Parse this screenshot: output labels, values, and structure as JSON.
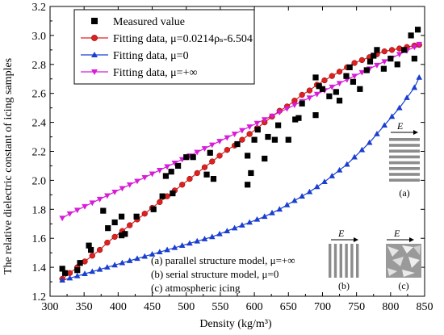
{
  "chart_data": {
    "type": "scatter",
    "xlabel": "Density (kg/m³)",
    "ylabel": "The relative dielectric constant of icing samples",
    "xlim": [
      300,
      850
    ],
    "ylim": [
      1.2,
      3.2
    ],
    "xticks": [
      300,
      350,
      400,
      450,
      500,
      550,
      600,
      650,
      700,
      750,
      800,
      850
    ],
    "yticks": [
      1.2,
      1.4,
      1.6,
      1.8,
      2.0,
      2.2,
      2.4,
      2.6,
      2.8,
      3.0,
      3.2
    ],
    "legend_position": "top-left",
    "series": [
      {
        "name": "Measured value",
        "kind": "scatter",
        "marker": "square",
        "color": "#000000",
        "points": [
          [
            318,
            1.39
          ],
          [
            322,
            1.36
          ],
          [
            340,
            1.38
          ],
          [
            344,
            1.43
          ],
          [
            357,
            1.55
          ],
          [
            360,
            1.52
          ],
          [
            378,
            1.79
          ],
          [
            385,
            1.67
          ],
          [
            395,
            1.71
          ],
          [
            405,
            1.62
          ],
          [
            405,
            1.75
          ],
          [
            410,
            1.63
          ],
          [
            427,
            1.75
          ],
          [
            452,
            1.8
          ],
          [
            465,
            1.89
          ],
          [
            470,
            2.03
          ],
          [
            478,
            2.06
          ],
          [
            480,
            1.91
          ],
          [
            488,
            2.1
          ],
          [
            500,
            2.16
          ],
          [
            510,
            2.16
          ],
          [
            530,
            2.04
          ],
          [
            535,
            2.19
          ],
          [
            540,
            2.01
          ],
          [
            575,
            2.25
          ],
          [
            590,
            2.17
          ],
          [
            590,
            1.97
          ],
          [
            595,
            2.05
          ],
          [
            600,
            2.28
          ],
          [
            605,
            2.35
          ],
          [
            615,
            2.15
          ],
          [
            620,
            2.3
          ],
          [
            630,
            2.28
          ],
          [
            635,
            2.38
          ],
          [
            650,
            2.28
          ],
          [
            660,
            2.42
          ],
          [
            665,
            2.43
          ],
          [
            670,
            2.53
          ],
          [
            690,
            2.71
          ],
          [
            690,
            2.45
          ],
          [
            695,
            2.65
          ],
          [
            700,
            2.63
          ],
          [
            710,
            2.58
          ],
          [
            720,
            2.61
          ],
          [
            725,
            2.55
          ],
          [
            735,
            2.72
          ],
          [
            740,
            2.78
          ],
          [
            745,
            2.68
          ],
          [
            755,
            2.63
          ],
          [
            765,
            2.76
          ],
          [
            770,
            2.82
          ],
          [
            775,
            2.86
          ],
          [
            780,
            2.9
          ],
          [
            790,
            2.77
          ],
          [
            800,
            2.84
          ],
          [
            810,
            2.8
          ],
          [
            820,
            2.9
          ],
          [
            830,
            3.0
          ],
          [
            835,
            2.84
          ],
          [
            840,
            3.04
          ]
        ]
      },
      {
        "name": "Fitting data, μ=0.0214ρₛ-6.504",
        "kind": "line",
        "marker": "circle",
        "color": "#e02020",
        "curve": "red"
      },
      {
        "name": "Fitting data, μ=0",
        "kind": "line",
        "marker": "triangle-up",
        "color": "#1a3fcf",
        "curve": "blue"
      },
      {
        "name": "Fitting data, μ=+∞",
        "kind": "line",
        "marker": "triangle-down",
        "color": "#d81bd8",
        "curve": "magenta"
      }
    ],
    "curve_points": {
      "red": [
        [
          318,
          1.32
        ],
        [
          329,
          1.36
        ],
        [
          340,
          1.4
        ],
        [
          351,
          1.44
        ],
        [
          362,
          1.48
        ],
        [
          373,
          1.52
        ],
        [
          384,
          1.57
        ],
        [
          395,
          1.61
        ],
        [
          406,
          1.65
        ],
        [
          417,
          1.69
        ],
        [
          428,
          1.73
        ],
        [
          439,
          1.77
        ],
        [
          450,
          1.81
        ],
        [
          461,
          1.85
        ],
        [
          472,
          1.89
        ],
        [
          483,
          1.93
        ],
        [
          494,
          1.97
        ],
        [
          505,
          2.01
        ],
        [
          516,
          2.05
        ],
        [
          527,
          2.09
        ],
        [
          538,
          2.13
        ],
        [
          549,
          2.17
        ],
        [
          560,
          2.21
        ],
        [
          571,
          2.24
        ],
        [
          582,
          2.28
        ],
        [
          593,
          2.32
        ],
        [
          604,
          2.36
        ],
        [
          615,
          2.4
        ],
        [
          626,
          2.44
        ],
        [
          637,
          2.48
        ],
        [
          648,
          2.51
        ],
        [
          659,
          2.55
        ],
        [
          670,
          2.59
        ],
        [
          681,
          2.62
        ],
        [
          692,
          2.66
        ],
        [
          703,
          2.69
        ],
        [
          714,
          2.72
        ],
        [
          725,
          2.75
        ],
        [
          736,
          2.78
        ],
        [
          747,
          2.81
        ],
        [
          758,
          2.83
        ],
        [
          769,
          2.85
        ],
        [
          780,
          2.87
        ],
        [
          791,
          2.89
        ],
        [
          802,
          2.9
        ],
        [
          813,
          2.91
        ],
        [
          824,
          2.92
        ],
        [
          835,
          2.93
        ],
        [
          842,
          2.935
        ]
      ],
      "blue": [
        [
          318,
          1.31
        ],
        [
          329,
          1.325
        ],
        [
          340,
          1.34
        ],
        [
          351,
          1.355
        ],
        [
          362,
          1.37
        ],
        [
          373,
          1.385
        ],
        [
          384,
          1.4
        ],
        [
          395,
          1.415
        ],
        [
          406,
          1.43
        ],
        [
          417,
          1.445
        ],
        [
          428,
          1.46
        ],
        [
          439,
          1.475
        ],
        [
          450,
          1.49
        ],
        [
          461,
          1.505
        ],
        [
          472,
          1.52
        ],
        [
          483,
          1.535
        ],
        [
          494,
          1.55
        ],
        [
          505,
          1.565
        ],
        [
          516,
          1.58
        ],
        [
          527,
          1.595
        ],
        [
          538,
          1.61
        ],
        [
          549,
          1.63
        ],
        [
          560,
          1.65
        ],
        [
          571,
          1.67
        ],
        [
          582,
          1.69
        ],
        [
          593,
          1.71
        ],
        [
          604,
          1.73
        ],
        [
          615,
          1.75
        ],
        [
          626,
          1.775
        ],
        [
          637,
          1.8
        ],
        [
          648,
          1.83
        ],
        [
          659,
          1.86
        ],
        [
          670,
          1.89
        ],
        [
          681,
          1.92
        ],
        [
          692,
          1.955
        ],
        [
          703,
          1.99
        ],
        [
          714,
          2.03
        ],
        [
          725,
          2.07
        ],
        [
          736,
          2.11
        ],
        [
          747,
          2.16
        ],
        [
          758,
          2.21
        ],
        [
          769,
          2.26
        ],
        [
          780,
          2.32
        ],
        [
          791,
          2.38
        ],
        [
          802,
          2.44
        ],
        [
          813,
          2.5
        ],
        [
          824,
          2.57
        ],
        [
          835,
          2.64
        ],
        [
          842,
          2.71
        ]
      ],
      "magenta": [
        [
          318,
          1.74
        ],
        [
          329,
          1.77
        ],
        [
          340,
          1.795
        ],
        [
          351,
          1.82
        ],
        [
          362,
          1.845
        ],
        [
          373,
          1.87
        ],
        [
          384,
          1.895
        ],
        [
          395,
          1.92
        ],
        [
          406,
          1.945
        ],
        [
          417,
          1.97
        ],
        [
          428,
          1.995
        ],
        [
          439,
          2.02
        ],
        [
          450,
          2.045
        ],
        [
          461,
          2.07
        ],
        [
          472,
          2.095
        ],
        [
          483,
          2.12
        ],
        [
          494,
          2.145
        ],
        [
          505,
          2.17
        ],
        [
          516,
          2.195
        ],
        [
          527,
          2.22
        ],
        [
          538,
          2.245
        ],
        [
          549,
          2.27
        ],
        [
          560,
          2.295
        ],
        [
          571,
          2.32
        ],
        [
          582,
          2.345
        ],
        [
          593,
          2.37
        ],
        [
          604,
          2.395
        ],
        [
          615,
          2.42
        ],
        [
          626,
          2.445
        ],
        [
          637,
          2.47
        ],
        [
          648,
          2.495
        ],
        [
          659,
          2.52
        ],
        [
          670,
          2.545
        ],
        [
          681,
          2.57
        ],
        [
          692,
          2.595
        ],
        [
          703,
          2.62
        ],
        [
          714,
          2.645
        ],
        [
          725,
          2.67
        ],
        [
          736,
          2.695
        ],
        [
          747,
          2.72
        ],
        [
          758,
          2.745
        ],
        [
          769,
          2.77
        ],
        [
          780,
          2.795
        ],
        [
          791,
          2.82
        ],
        [
          802,
          2.845
        ],
        [
          813,
          2.87
        ],
        [
          824,
          2.895
        ],
        [
          835,
          2.92
        ],
        [
          842,
          2.94
        ]
      ]
    },
    "annotations": [
      "(a) parallel structure model, μ=+∞",
      "(b) serial structure model, μ=0",
      "(c) atmospheric icing"
    ],
    "insets": {
      "a_label": "(a)",
      "b_label": "(b)",
      "c_label": "(c)",
      "field_symbol": "E"
    }
  }
}
